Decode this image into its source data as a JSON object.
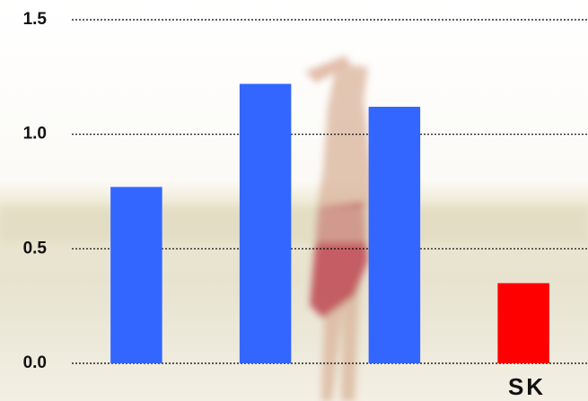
{
  "chart_data": {
    "type": "bar",
    "categories": [
      null,
      null,
      null,
      "SK"
    ],
    "values": [
      0.77,
      1.22,
      1.12,
      0.35
    ],
    "colors": [
      "#3366ff",
      "#3366ff",
      "#3366ff",
      "#ff0000"
    ],
    "ylim": [
      0,
      1.5
    ],
    "yticks": [
      {
        "value": 0,
        "label": "0.0"
      },
      {
        "value": 0.5,
        "label": "0.5"
      },
      {
        "value": 1,
        "label": "1.0"
      },
      {
        "value": 1.5,
        "label": "1.5"
      }
    ],
    "grid": true
  }
}
